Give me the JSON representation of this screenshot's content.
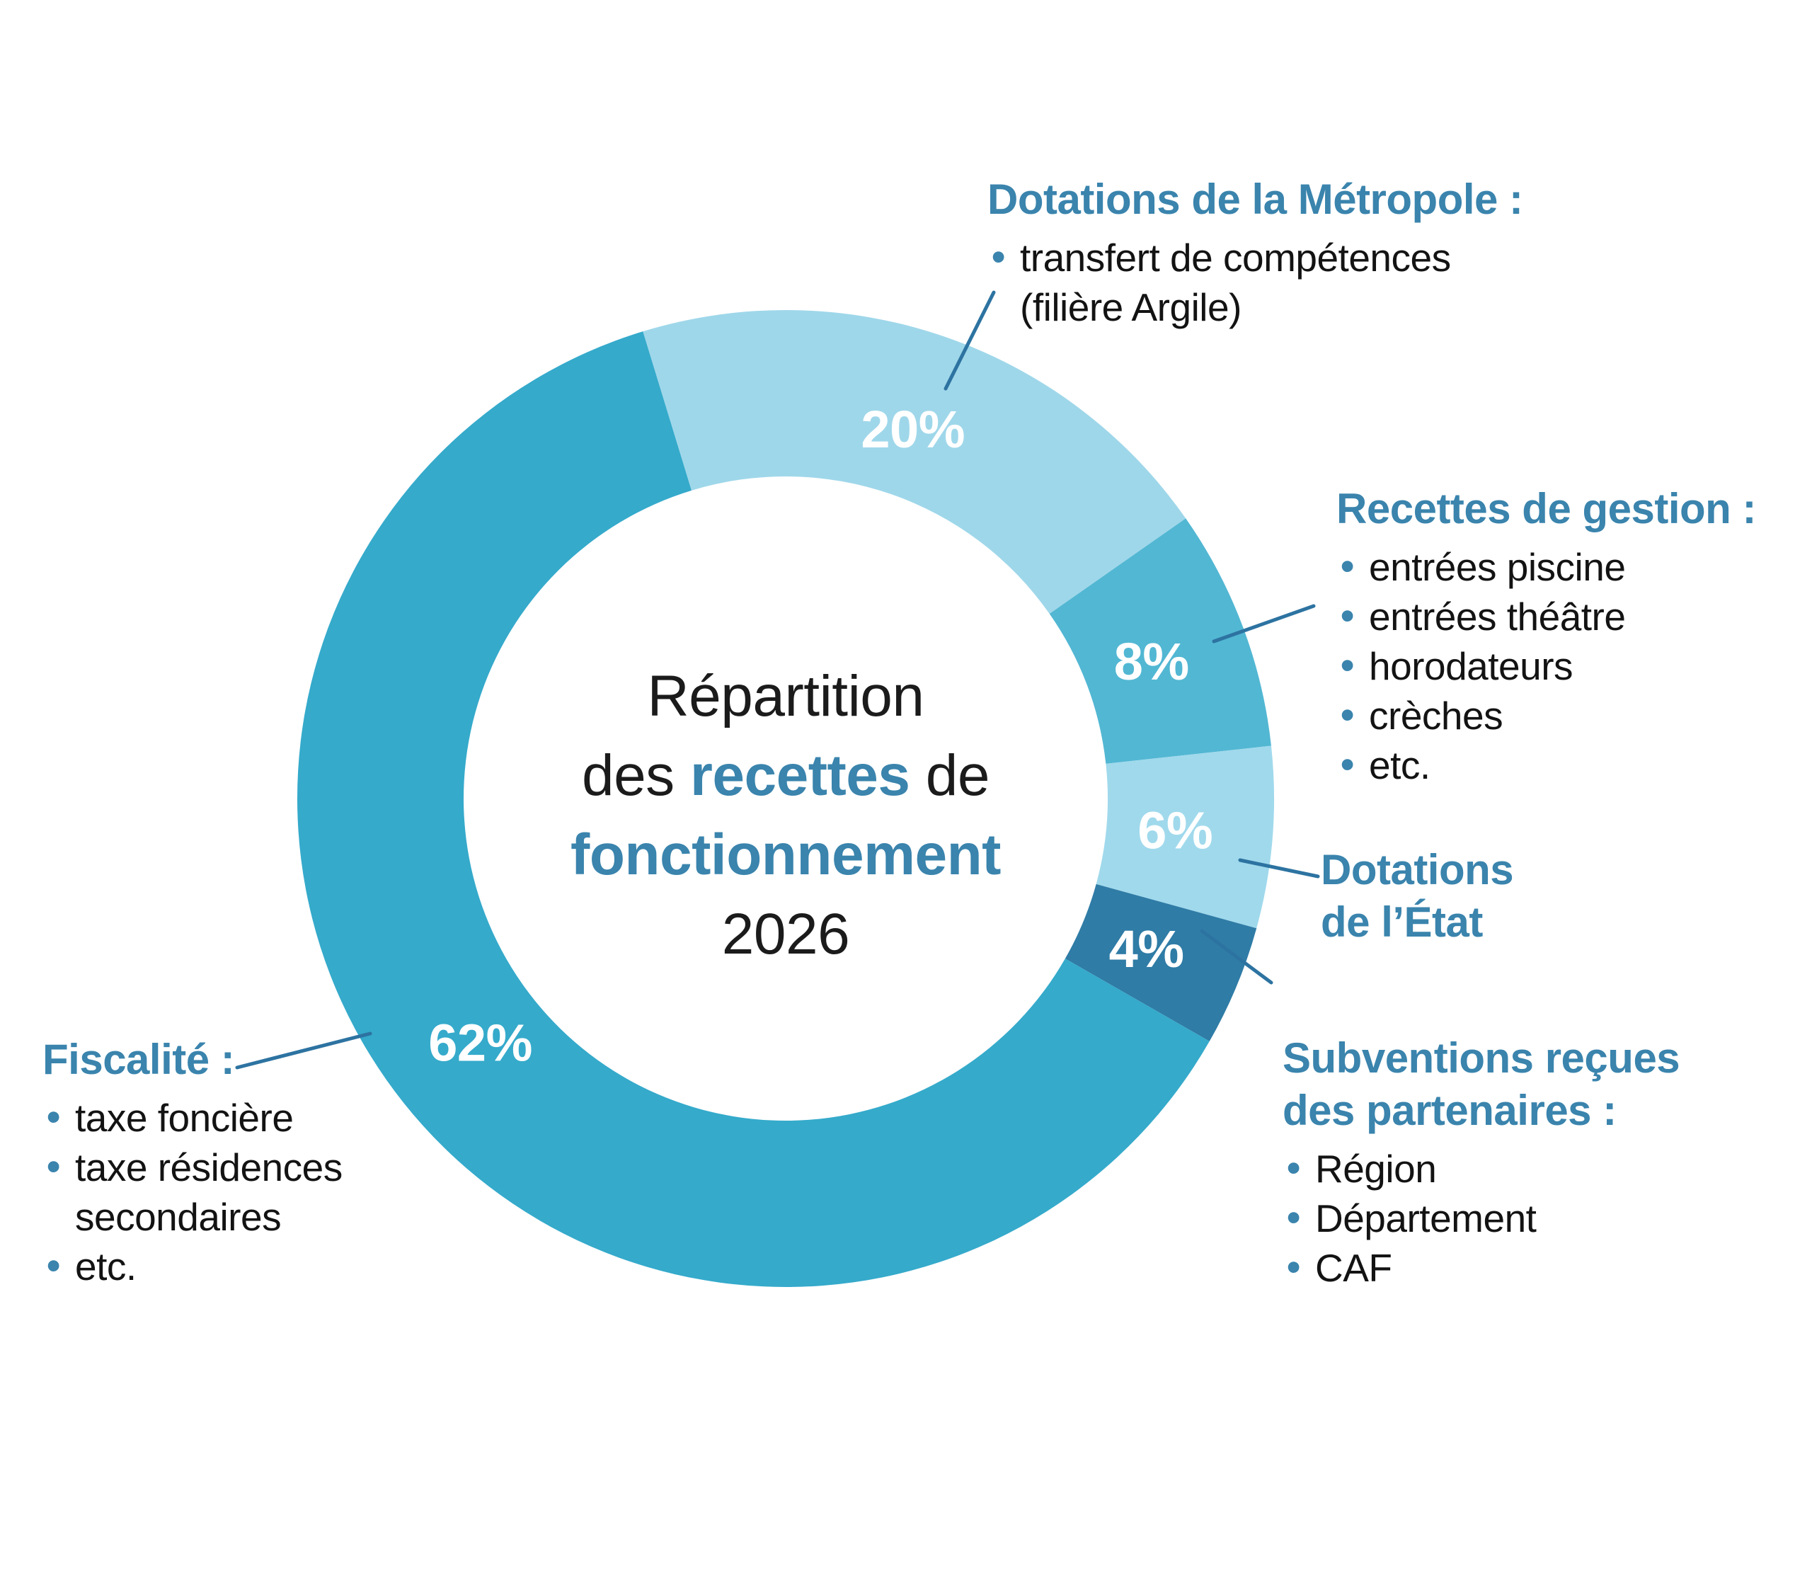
{
  "palette": {
    "accent_blue": "#3a84ad",
    "leader_line": "#2d73a1",
    "text_black": "#131313",
    "background": "#ffffff",
    "segment_label_white": "#ffffff"
  },
  "center_title": {
    "line1": "Répartition",
    "line2_pre": "des ",
    "line2_blue": "recettes",
    "line2_post": " de",
    "line3": "fonctionnement",
    "line4": "2026"
  },
  "chart_data": {
    "type": "pie",
    "subtype": "donut",
    "title": "Répartition des recettes de fonctionnement 2026",
    "start_angle_deg": -17,
    "direction": "clockwise",
    "value_label_suffix": "%",
    "legend_position": "callouts-around-ring",
    "segments": [
      {
        "slug": "dotations-metropole",
        "label": "Dotations de la Métropole",
        "value": 20,
        "color": "#9fd7ea",
        "details": [
          "transfert de compétences (filière Argile)"
        ]
      },
      {
        "slug": "recettes-gestion",
        "label": "Recettes de gestion",
        "value": 8,
        "color": "#52b7d3",
        "details": [
          "entrées piscine",
          "entrées théâtre",
          "horodateurs",
          "crèches",
          "etc."
        ]
      },
      {
        "slug": "dotations-etat",
        "label": "Dotations de l’État",
        "value": 6,
        "color": "#a0d9ec",
        "details": []
      },
      {
        "slug": "subventions-partenaires",
        "label": "Subventions reçues des partenaires",
        "value": 4,
        "color": "#2f7ca6",
        "details": [
          "Région",
          "Département",
          "CAF"
        ]
      },
      {
        "slug": "fiscalite",
        "label": "Fiscalité",
        "value": 62,
        "color": "#35aacb",
        "details": [
          "taxe foncière",
          "taxe résidences secondaires",
          "etc."
        ]
      }
    ]
  },
  "annotations": [
    {
      "heading": "Dotations de la Métropole :",
      "items": [
        "transfert de compétences\n(filière Argile)"
      ]
    },
    {
      "heading": "Recettes de gestion :",
      "items": [
        "entrées piscine",
        "entrées théâtre",
        "horodateurs",
        "crèches",
        "etc."
      ]
    },
    {
      "heading": "Dotations\nde l’État",
      "items": []
    },
    {
      "heading": "Subventions reçues\ndes partenaires :",
      "items": [
        "Région",
        "Département",
        "CAF"
      ]
    },
    {
      "heading": "Fiscalité :",
      "items": [
        "taxe foncière",
        "taxe résidences\nsecondaires",
        "etc."
      ]
    }
  ]
}
